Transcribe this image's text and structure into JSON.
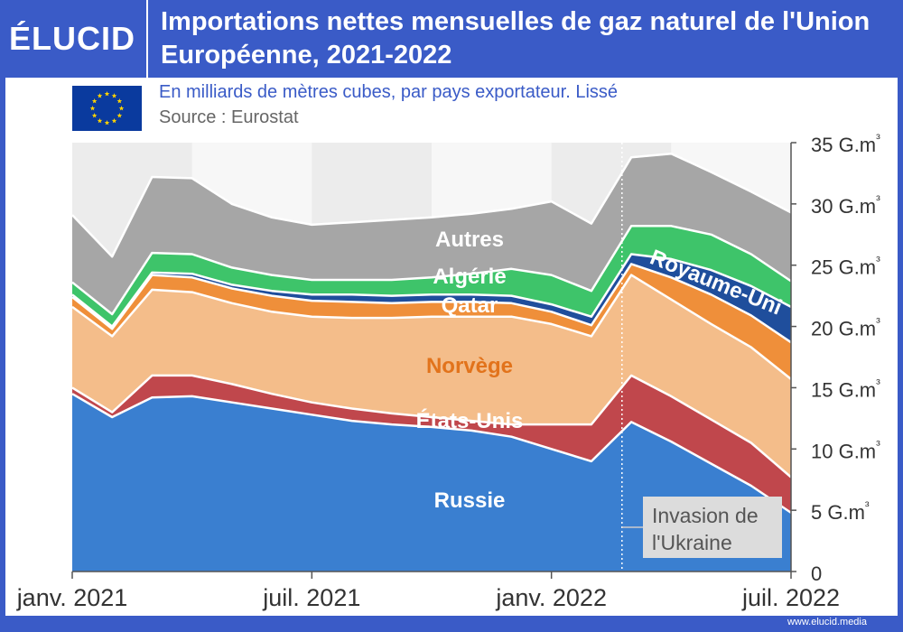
{
  "brand": "ÉLUCID",
  "title": "Importations nettes mensuelles de gaz naturel de l'Union Européenne, 2021-2022",
  "subtitle": "En milliards de mètres cubes, par pays exportateur. Lissé",
  "source": "Source : Eurostat",
  "footer_url": "www.elucid.media",
  "colors": {
    "Russie": "#3a7fd0",
    "États-Unis": "#c0474c",
    "Norvège": "#f4bd8a",
    "Qatar": "#ef8f3a",
    "Royaume-Uni": "#1f4e9c",
    "Algérie": "#3ec46a",
    "Autres": "#a6a6a6"
  },
  "chart_data": {
    "type": "area",
    "stacked": true,
    "x": [
      "2021-01",
      "2021-02",
      "2021-03",
      "2021-04",
      "2021-05",
      "2021-06",
      "2021-07",
      "2021-08",
      "2021-09",
      "2021-10",
      "2021-11",
      "2021-12",
      "2022-01",
      "2022-02",
      "2022-03",
      "2022-04",
      "2022-05",
      "2022-06",
      "2022-07"
    ],
    "series": [
      {
        "name": "Russie",
        "values": [
          14.5,
          12.6,
          14.2,
          14.3,
          13.8,
          13.3,
          12.8,
          12.3,
          12.0,
          11.8,
          11.5,
          11.0,
          10.0,
          9.0,
          12.2,
          10.6,
          8.8,
          7.0,
          4.8
        ]
      },
      {
        "name": "États-Unis",
        "values": [
          0.5,
          0.4,
          1.8,
          1.7,
          1.5,
          1.2,
          1.0,
          1.0,
          0.9,
          0.8,
          0.8,
          1.0,
          2.0,
          3.0,
          3.8,
          3.7,
          3.6,
          3.5,
          2.9
        ]
      },
      {
        "name": "Norvège",
        "values": [
          6.6,
          6.2,
          7.0,
          6.8,
          6.6,
          6.7,
          7.0,
          7.4,
          7.8,
          8.2,
          8.5,
          8.8,
          8.2,
          7.2,
          8.2,
          7.9,
          7.8,
          7.8,
          8.0
        ]
      },
      {
        "name": "Qatar",
        "values": [
          0.8,
          0.6,
          1.2,
          1.2,
          1.2,
          1.3,
          1.3,
          1.3,
          1.2,
          1.2,
          1.2,
          1.1,
          1.0,
          0.9,
          0.9,
          1.8,
          2.4,
          2.6,
          3.0
        ]
      },
      {
        "name": "Royaume-Uni",
        "values": [
          0.2,
          0.2,
          0.2,
          0.3,
          0.3,
          0.4,
          0.5,
          0.6,
          0.6,
          0.6,
          0.6,
          0.6,
          0.6,
          0.7,
          0.8,
          1.5,
          2.0,
          2.4,
          2.9
        ]
      },
      {
        "name": "Algérie",
        "values": [
          1.0,
          1.0,
          1.6,
          1.6,
          1.4,
          1.3,
          1.2,
          1.2,
          1.3,
          1.4,
          1.7,
          2.2,
          2.4,
          2.1,
          2.3,
          2.7,
          2.9,
          2.6,
          2.1
        ]
      },
      {
        "name": "Autres",
        "values": [
          5.5,
          4.7,
          6.2,
          6.2,
          5.2,
          4.7,
          4.5,
          4.7,
          4.9,
          4.9,
          4.9,
          4.9,
          6.0,
          5.5,
          5.6,
          5.9,
          5.1,
          5.1,
          5.6
        ]
      }
    ],
    "labels": [
      "Autres",
      "Algérie",
      "Qatar",
      "Norvège",
      "États-Unis",
      "Russie",
      "Royaume-Uni"
    ],
    "ylim": [
      0,
      35
    ],
    "yticks": [
      0,
      5,
      10,
      15,
      20,
      25,
      30,
      35
    ],
    "ytick_labels": [
      "0",
      "5 G.m³",
      "10 G.m³",
      "15 G.m³",
      "20 G.m³",
      "25 G.m³",
      "30 G.m³",
      "35 G.m³"
    ],
    "xticks": [
      {
        "x": "2021-01",
        "label": "janv. 2021"
      },
      {
        "x": "2021-07",
        "label": "juil. 2021"
      },
      {
        "x": "2022-01",
        "label": "janv. 2022"
      },
      {
        "x": "2022-07",
        "label": "juil. 2022"
      }
    ],
    "annotation": {
      "x": "2022-02-24",
      "line1": "Invasion de",
      "line2": "l'Ukraine"
    }
  }
}
